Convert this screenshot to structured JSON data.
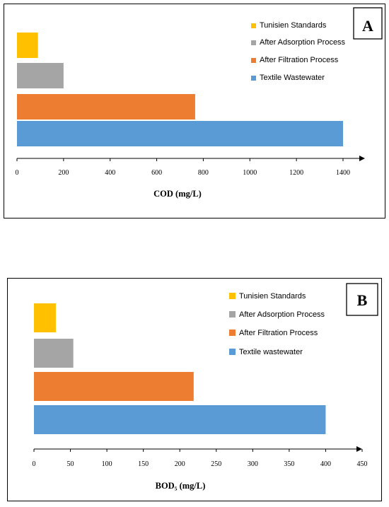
{
  "chart_data": [
    {
      "type": "bar",
      "orientation": "horizontal",
      "panel_label": "A",
      "xlabel": "COD (mg/L)",
      "xlim": [
        0,
        1400
      ],
      "xticks": [
        0,
        200,
        400,
        600,
        800,
        1000,
        1200,
        1400
      ],
      "categories": [
        "Textile Wastewater",
        "After Filtration Process",
        "After Adsorption Process",
        "Tunisien Standards"
      ],
      "values": [
        1400,
        765,
        200,
        90
      ],
      "colors": [
        "#5b9bd5",
        "#ed7d31",
        "#a5a5a5",
        "#ffc000"
      ],
      "legend": [
        "Tunisien Standards",
        "After Adsorption Process",
        "After Filtration Process",
        "Textile Wastewater"
      ],
      "legend_colors": [
        "#ffc000",
        "#a5a5a5",
        "#ed7d31",
        "#5b9bd5"
      ],
      "legend_position": "top-right",
      "grid": false
    },
    {
      "type": "bar",
      "orientation": "horizontal",
      "panel_label": "B",
      "xlabel": "BOD₅ (mg/L)",
      "xlim": [
        0,
        450
      ],
      "xticks": [
        0,
        50,
        100,
        150,
        200,
        250,
        300,
        350,
        400,
        450
      ],
      "categories": [
        "Textile wastewater",
        "After Filtration Process",
        "After Adsorption Process",
        "Tunisien Standards"
      ],
      "values": [
        400,
        219,
        54,
        30
      ],
      "colors": [
        "#5b9bd5",
        "#ed7d31",
        "#a5a5a5",
        "#ffc000"
      ],
      "legend": [
        "Tunisien Standards",
        "After Adsorption Process",
        "After Filtration Process",
        "Textile wastewater"
      ],
      "legend_colors": [
        "#ffc000",
        "#a5a5a5",
        "#ed7d31",
        "#5b9bd5"
      ],
      "legend_position": "top-right",
      "grid": false
    }
  ]
}
